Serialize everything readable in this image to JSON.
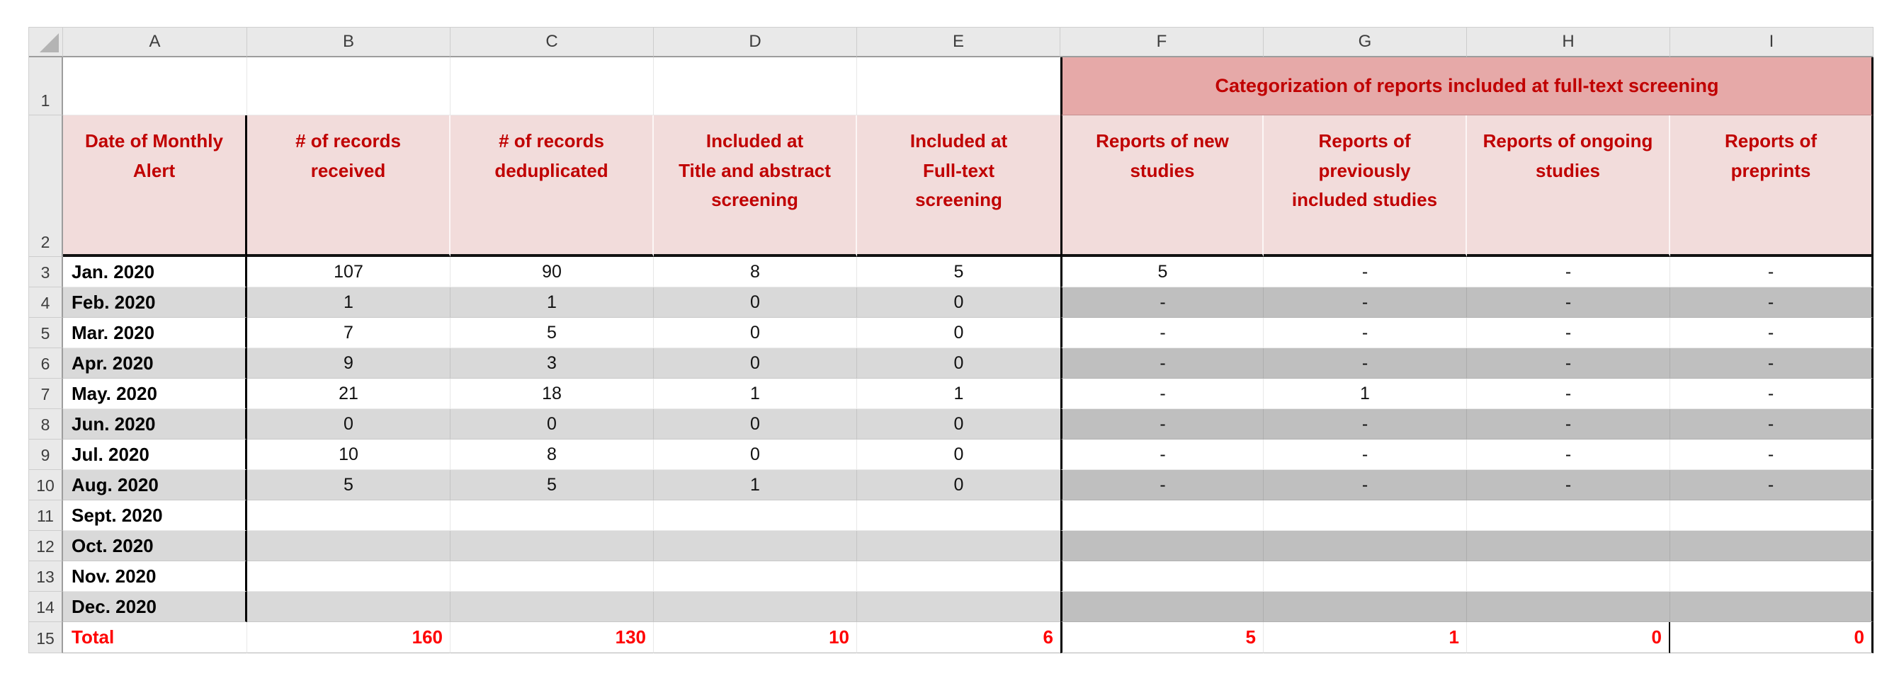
{
  "sheet": {
    "column_letters": [
      "A",
      "B",
      "C",
      "D",
      "E",
      "F",
      "G",
      "H",
      "I"
    ],
    "row_numbers": [
      "1",
      "2",
      "3",
      "4",
      "5",
      "6",
      "7",
      "8",
      "9",
      "10",
      "11",
      "12",
      "13",
      "14",
      "15"
    ],
    "banner": "Categorization of reports included at full-text screening",
    "headers": {
      "a": "Date of Monthly\nAlert",
      "b": "# of records\nreceived",
      "c": "# of records\ndeduplicated",
      "d": "Included at\nTitle and abstract\nscreening",
      "e": "Included at\nFull-text\nscreening",
      "f": "Reports of new\nstudies",
      "g": "Reports of\npreviously\nincluded studies",
      "h": "Reports of ongoing\nstudies",
      "i": "Reports of\npreprints"
    },
    "rows": [
      {
        "month": "Jan. 2020",
        "values": [
          "107",
          "90",
          "8",
          "5",
          "5",
          "-",
          "-",
          "-"
        ]
      },
      {
        "month": "Feb. 2020",
        "values": [
          "1",
          "1",
          "0",
          "0",
          "-",
          "-",
          "-",
          "-"
        ]
      },
      {
        "month": "Mar. 2020",
        "values": [
          "7",
          "5",
          "0",
          "0",
          "-",
          "-",
          "-",
          "-"
        ]
      },
      {
        "month": "Apr. 2020",
        "values": [
          "9",
          "3",
          "0",
          "0",
          "-",
          "-",
          "-",
          "-"
        ]
      },
      {
        "month": "May. 2020",
        "values": [
          "21",
          "18",
          "1",
          "1",
          "-",
          "1",
          "-",
          "-"
        ]
      },
      {
        "month": "Jun. 2020",
        "values": [
          "0",
          "0",
          "0",
          "0",
          "-",
          "-",
          "-",
          "-"
        ]
      },
      {
        "month": "Jul. 2020",
        "values": [
          "10",
          "8",
          "0",
          "0",
          "-",
          "-",
          "-",
          "-"
        ]
      },
      {
        "month": "Aug. 2020",
        "values": [
          "5",
          "5",
          "1",
          "0",
          "-",
          "-",
          "-",
          "-"
        ]
      },
      {
        "month": "Sept. 2020",
        "values": [
          "",
          "",
          "",
          "",
          "",
          "",
          "",
          ""
        ]
      },
      {
        "month": "Oct. 2020",
        "values": [
          "",
          "",
          "",
          "",
          "",
          "",
          "",
          ""
        ]
      },
      {
        "month": "Nov. 2020",
        "values": [
          "",
          "",
          "",
          "",
          "",
          "",
          "",
          ""
        ]
      },
      {
        "month": "Dec. 2020",
        "values": [
          "",
          "",
          "",
          "",
          "",
          "",
          "",
          ""
        ]
      }
    ],
    "total": {
      "label": "Total",
      "values": [
        "160",
        "130",
        "10",
        "6",
        "5",
        "1",
        "0",
        "0"
      ]
    }
  },
  "colors": {
    "header_text_red": "#C00000",
    "total_text_red": "#FF0000",
    "banner_fill": "#E6A9A8",
    "header_fill": "#F2DCDB",
    "band_light_gray": "#D9D9D9",
    "band_dark_gray": "#BFBFBF"
  }
}
